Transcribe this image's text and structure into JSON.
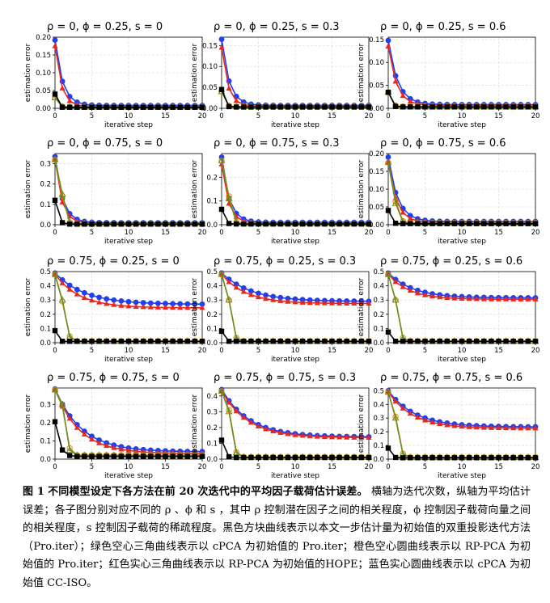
{
  "caption": {
    "label": "图 1",
    "title": "不同模型设定下各方法在前 20 次迭代中的平均因子载荷估计误差。",
    "body": "横轴为迭代次数，纵轴为平均估计误差；各子图分别对应不同的 ρ 、ϕ 和 s ，其中 ρ 控制潜在因子之间的相关程度，ϕ 控制因子载荷向量之间的相关程度，s 控制因子载荷的稀疏程度。黑色方块曲线表示以本文一步估计量为初始值的双重投影迭代方法（Pro.iter）；绿色空心三角曲线表示以 cPCA 为初始值的 Pro.iter；橙色空心圆曲线表示以 RP-PCA 为初始值的 Pro.iter；红色实心三角曲线表示以 RP-PCA 为初始值的HOPE；蓝色实心圆曲线表示以 cPCA 为初始值 CC-ISO。"
  },
  "colors": {
    "black": "#000000",
    "green": "#6b8e23",
    "orange": "#e08a00",
    "red": "#e8281e",
    "blue": "#1f3ff0",
    "grid": "#e2e2e2"
  },
  "chart_data": [
    {
      "type": "line",
      "title": "ρ = 0, ϕ = 0.25, s = 0",
      "xlabel": "iterative step",
      "ylabel": "estimation error",
      "xlim": [
        0,
        20
      ],
      "ylim": [
        0,
        0.2
      ],
      "yticks": [
        0,
        0.05,
        0.1,
        0.15,
        0.2
      ],
      "ytick_labels": [
        "0.00",
        "0.05",
        "0.10",
        "0.15",
        "0.20"
      ],
      "xticks": [
        0,
        5,
        10,
        15,
        20
      ],
      "series": [
        {
          "key": "black",
          "final": 0.003,
          "points": [
            0.04,
            0.003
          ]
        },
        {
          "key": "green",
          "final": 0.003,
          "points": [
            0.03,
            0.004
          ]
        },
        {
          "key": "orange",
          "final": 0.004,
          "points": [
            0.03,
            0.005
          ]
        },
        {
          "key": "red",
          "start": 0.175,
          "final": 0.005,
          "rate": 1.2
        },
        {
          "key": "blue",
          "start": 0.192,
          "final": 0.008,
          "rate": 1.0
        }
      ]
    },
    {
      "type": "line",
      "title": "ρ = 0, ϕ = 0.25, s = 0.3",
      "xlabel": "iterative step",
      "ylabel": "estimation error",
      "xlim": [
        0,
        20
      ],
      "ylim": [
        0,
        0.17
      ],
      "yticks": [
        0,
        0.05,
        0.1,
        0.15
      ],
      "ytick_labels": [
        "0.00",
        "0.05",
        "0.10",
        "0.15"
      ],
      "xticks": [
        0,
        5,
        10,
        15,
        20
      ],
      "series": [
        {
          "key": "black",
          "final": 0.003,
          "points": [
            0.045,
            0.004
          ]
        },
        {
          "key": "green",
          "final": 0.004,
          "points": [
            0.04,
            0.005
          ]
        },
        {
          "key": "orange",
          "final": 0.004,
          "points": [
            0.04,
            0.006
          ]
        },
        {
          "key": "red",
          "start": 0.145,
          "final": 0.005,
          "rate": 1.2
        },
        {
          "key": "blue",
          "start": 0.165,
          "final": 0.007,
          "rate": 1.0
        }
      ]
    },
    {
      "type": "line",
      "title": "ρ = 0, ϕ = 0.25, s = 0.6",
      "xlabel": "iterative step",
      "ylabel": "estimation error",
      "xlim": [
        0,
        20
      ],
      "ylim": [
        0,
        0.155
      ],
      "yticks": [
        0,
        0.05,
        0.1,
        0.15
      ],
      "ytick_labels": [
        "0.00",
        "0.05",
        "0.10",
        "0.15"
      ],
      "xticks": [
        0,
        5,
        10,
        15,
        20
      ],
      "series": [
        {
          "key": "black",
          "final": 0.003,
          "points": [
            0.035,
            0.004
          ]
        },
        {
          "key": "green",
          "final": 0.003,
          "points": [
            0.035,
            0.005
          ]
        },
        {
          "key": "orange",
          "final": 0.004,
          "points": [
            0.035,
            0.006
          ]
        },
        {
          "key": "red",
          "start": 0.135,
          "final": 0.006,
          "rate": 0.9
        },
        {
          "key": "blue",
          "start": 0.148,
          "final": 0.008,
          "rate": 0.8
        }
      ]
    },
    {
      "type": "line",
      "title": "ρ = 0, ϕ = 0.75, s = 0",
      "xlabel": "iterative step",
      "ylabel": "estimation error",
      "xlim": [
        0,
        20
      ],
      "ylim": [
        0,
        0.35
      ],
      "yticks": [
        0,
        0.1,
        0.2,
        0.3
      ],
      "ytick_labels": [
        "0.0",
        "0.1",
        "0.2",
        "0.3"
      ],
      "xticks": [
        0,
        5,
        10,
        15,
        20
      ],
      "series": [
        {
          "key": "black",
          "final": 0.003,
          "points": [
            0.12,
            0.01
          ]
        },
        {
          "key": "green",
          "final": 0.004,
          "points": [
            0.32,
            0.15,
            0.01
          ]
        },
        {
          "key": "orange",
          "final": 0.005,
          "points": [
            0.32,
            0.14,
            0.012
          ]
        },
        {
          "key": "red",
          "start": 0.32,
          "final": 0.006,
          "rate": 1.1
        },
        {
          "key": "blue",
          "start": 0.335,
          "final": 0.01,
          "rate": 1.0
        }
      ]
    },
    {
      "type": "line",
      "title": "ρ = 0, ϕ = 0.75, s = 0.3",
      "xlabel": "iterative step",
      "ylabel": "estimation error",
      "xlim": [
        0,
        20
      ],
      "ylim": [
        0,
        0.3
      ],
      "yticks": [
        0,
        0.1,
        0.2
      ],
      "ytick_labels": [
        "0.0",
        "0.1",
        "0.2"
      ],
      "xticks": [
        0,
        5,
        10,
        15,
        20
      ],
      "series": [
        {
          "key": "black",
          "final": 0.003,
          "points": [
            0.065,
            0.005
          ]
        },
        {
          "key": "green",
          "final": 0.004,
          "points": [
            0.27,
            0.11,
            0.01
          ]
        },
        {
          "key": "orange",
          "final": 0.005,
          "points": [
            0.27,
            0.12,
            0.012
          ]
        },
        {
          "key": "red",
          "start": 0.255,
          "final": 0.006,
          "rate": 1.1
        },
        {
          "key": "blue",
          "start": 0.285,
          "final": 0.01,
          "rate": 1.0
        }
      ]
    },
    {
      "type": "line",
      "title": "ρ = 0, ϕ = 0.75, s = 0.6",
      "xlabel": "iterative step",
      "ylabel": "estimation error",
      "xlim": [
        0,
        20
      ],
      "ylim": [
        0,
        0.2
      ],
      "yticks": [
        0,
        0.05,
        0.1,
        0.15,
        0.2
      ],
      "ytick_labels": [
        "0.00",
        "0.05",
        "0.10",
        "0.15",
        "0.20"
      ],
      "xticks": [
        0,
        5,
        10,
        15,
        20
      ],
      "series": [
        {
          "key": "black",
          "final": 0.003,
          "points": [
            0.04,
            0.004
          ]
        },
        {
          "key": "green",
          "final": 0.004,
          "points": [
            0.175,
            0.06,
            0.008
          ]
        },
        {
          "key": "orange",
          "final": 0.005,
          "points": [
            0.175,
            0.065,
            0.01
          ]
        },
        {
          "key": "red",
          "start": 0.175,
          "final": 0.006,
          "rate": 0.9
        },
        {
          "key": "blue",
          "start": 0.19,
          "final": 0.009,
          "rate": 0.8
        }
      ]
    },
    {
      "type": "line",
      "title": "ρ = 0.75, ϕ = 0.25, s = 0",
      "xlabel": "iterative step",
      "ylabel": "estimation error",
      "xlim": [
        0,
        20
      ],
      "ylim": [
        0,
        0.5
      ],
      "yticks": [
        0,
        0.1,
        0.2,
        0.3,
        0.4,
        0.5
      ],
      "ytick_labels": [
        "0.0",
        "0.1",
        "0.2",
        "0.3",
        "0.4",
        "0.5"
      ],
      "xticks": [
        0,
        5,
        10,
        15,
        20
      ],
      "series": [
        {
          "key": "black",
          "final": 0.01,
          "points": [
            0.085,
            0.01
          ]
        },
        {
          "key": "green",
          "final": 0.01,
          "points": [
            0.48,
            0.3,
            0.04,
            0.01
          ]
        },
        {
          "key": "orange",
          "final": 0.012,
          "points": [
            0.48,
            0.29,
            0.045,
            0.012
          ]
        },
        {
          "key": "red",
          "start": 0.48,
          "final": 0.245,
          "rate": 0.3
        },
        {
          "key": "blue",
          "start": 0.49,
          "final": 0.27,
          "rate": 0.25
        }
      ]
    },
    {
      "type": "line",
      "title": "ρ = 0.75, ϕ = 0.25, s = 0.3",
      "xlabel": "iterative step",
      "ylabel": "estimation error",
      "xlim": [
        0,
        20
      ],
      "ylim": [
        0,
        0.5
      ],
      "yticks": [
        0,
        0.1,
        0.2,
        0.3,
        0.4,
        0.5
      ],
      "ytick_labels": [
        "0.0",
        "0.1",
        "0.2",
        "0.3",
        "0.4",
        "0.5"
      ],
      "xticks": [
        0,
        5,
        10,
        15,
        20
      ],
      "series": [
        {
          "key": "black",
          "final": 0.01,
          "points": [
            0.08,
            0.01
          ]
        },
        {
          "key": "green",
          "final": 0.01,
          "points": [
            0.48,
            0.3,
            0.03,
            0.01
          ]
        },
        {
          "key": "orange",
          "final": 0.012,
          "points": [
            0.48,
            0.3,
            0.035,
            0.012
          ]
        },
        {
          "key": "red",
          "start": 0.48,
          "final": 0.275,
          "rate": 0.3
        },
        {
          "key": "blue",
          "start": 0.49,
          "final": 0.29,
          "rate": 0.25
        }
      ]
    },
    {
      "type": "line",
      "title": "ρ = 0.75, ϕ = 0.25, s = 0.6",
      "xlabel": "iterative step",
      "ylabel": "estimation error",
      "xlim": [
        0,
        20
      ],
      "ylim": [
        0,
        0.5
      ],
      "yticks": [
        0,
        0.1,
        0.2,
        0.3,
        0.4,
        0.5
      ],
      "ytick_labels": [
        "0.0",
        "0.1",
        "0.2",
        "0.3",
        "0.4",
        "0.5"
      ],
      "xticks": [
        0,
        5,
        10,
        15,
        20
      ],
      "series": [
        {
          "key": "black",
          "final": 0.01,
          "points": [
            0.075,
            0.01
          ]
        },
        {
          "key": "green",
          "final": 0.01,
          "points": [
            0.48,
            0.3,
            0.03,
            0.01
          ]
        },
        {
          "key": "orange",
          "final": 0.012,
          "points": [
            0.48,
            0.3,
            0.035,
            0.012
          ]
        },
        {
          "key": "red",
          "start": 0.48,
          "final": 0.305,
          "rate": 0.35
        },
        {
          "key": "blue",
          "start": 0.49,
          "final": 0.315,
          "rate": 0.3
        }
      ]
    },
    {
      "type": "line",
      "title": "ρ = 0.75, ϕ = 0.75, s = 0",
      "xlabel": "iterative step",
      "ylabel": "estimation error",
      "xlim": [
        0,
        20
      ],
      "ylim": [
        0,
        0.39
      ],
      "yticks": [
        0,
        0.1,
        0.2,
        0.3
      ],
      "ytick_labels": [
        "0.0",
        "0.1",
        "0.2",
        "0.3"
      ],
      "xticks": [
        0,
        5,
        10,
        15,
        20
      ],
      "series": [
        {
          "key": "black",
          "final": 0.015,
          "points": [
            0.205,
            0.05,
            0.02
          ]
        },
        {
          "key": "green",
          "final": 0.02,
          "points": [
            0.38,
            0.3,
            0.05,
            0.02
          ]
        },
        {
          "key": "orange",
          "final": 0.022,
          "points": [
            0.38,
            0.29,
            0.06,
            0.022
          ]
        },
        {
          "key": "red",
          "start": 0.38,
          "final": 0.03,
          "rate": 0.3
        },
        {
          "key": "blue",
          "start": 0.385,
          "final": 0.04,
          "rate": 0.28
        }
      ]
    },
    {
      "type": "line",
      "title": "ρ = 0.75, ϕ = 0.75, s = 0.3",
      "xlabel": "iterative step",
      "ylabel": "estimation error",
      "xlim": [
        0,
        20
      ],
      "ylim": [
        0,
        0.45
      ],
      "yticks": [
        0,
        0.1,
        0.2,
        0.3,
        0.4
      ],
      "ytick_labels": [
        "0.0",
        "0.1",
        "0.2",
        "0.3",
        "0.4"
      ],
      "xticks": [
        0,
        5,
        10,
        15,
        20
      ],
      "series": [
        {
          "key": "black",
          "final": 0.01,
          "points": [
            0.12,
            0.015
          ]
        },
        {
          "key": "green",
          "final": 0.012,
          "points": [
            0.43,
            0.3,
            0.04,
            0.012
          ]
        },
        {
          "key": "orange",
          "final": 0.014,
          "points": [
            0.43,
            0.31,
            0.045,
            0.014
          ]
        },
        {
          "key": "red",
          "start": 0.43,
          "final": 0.135,
          "rate": 0.28
        },
        {
          "key": "blue",
          "start": 0.44,
          "final": 0.14,
          "rate": 0.27
        }
      ]
    },
    {
      "type": "line",
      "title": "ρ = 0.75, ϕ = 0.75, s = 0.6",
      "xlabel": "iterative step",
      "ylabel": "estimation error",
      "xlim": [
        0,
        20
      ],
      "ylim": [
        0,
        0.52
      ],
      "yticks": [
        0,
        0.1,
        0.2,
        0.3,
        0.4,
        0.5
      ],
      "ytick_labels": [
        "0.0",
        "0.1",
        "0.2",
        "0.3",
        "0.4",
        "0.5"
      ],
      "xticks": [
        0,
        5,
        10,
        15,
        20
      ],
      "series": [
        {
          "key": "black",
          "final": 0.01,
          "points": [
            0.08,
            0.012
          ]
        },
        {
          "key": "green",
          "final": 0.012,
          "points": [
            0.49,
            0.3,
            0.035,
            0.012
          ]
        },
        {
          "key": "orange",
          "final": 0.014,
          "points": [
            0.49,
            0.31,
            0.04,
            0.014
          ]
        },
        {
          "key": "red",
          "start": 0.49,
          "final": 0.225,
          "rate": 0.3
        },
        {
          "key": "blue",
          "start": 0.5,
          "final": 0.235,
          "rate": 0.28
        }
      ]
    }
  ]
}
